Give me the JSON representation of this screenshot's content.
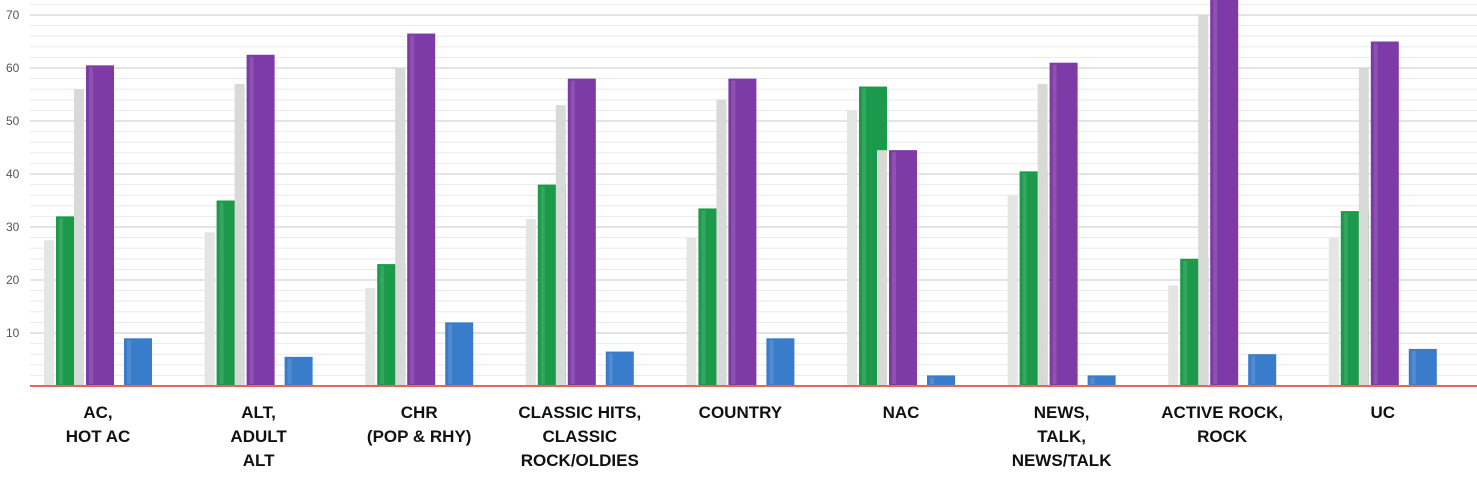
{
  "chart_data": {
    "type": "bar",
    "categories": [
      [
        "AC,",
        "HOT AC"
      ],
      [
        "ALT,",
        "ADULT",
        "ALT"
      ],
      [
        "CHR",
        "(POP & RHY)"
      ],
      [
        "CLASSIC HITS,",
        "CLASSIC",
        "ROCK/OLDIES"
      ],
      [
        "COUNTRY"
      ],
      [
        "NAC"
      ],
      [
        "NEWS,",
        "TALK,",
        "NEWS/TALK"
      ],
      [
        "ACTIVE ROCK,",
        "ROCK"
      ],
      [
        "UC"
      ]
    ],
    "series": [
      {
        "color": "#e3e6e3",
        "values": [
          27.5,
          29,
          18.5,
          31.5,
          28,
          52,
          36,
          19,
          28
        ]
      },
      {
        "color": "#1a9a4a",
        "values": [
          32,
          35,
          23,
          38,
          33.5,
          56.5,
          40.5,
          24,
          33
        ]
      },
      {
        "color": "#d8dad8",
        "values": [
          56,
          57,
          60,
          53,
          54,
          44.5,
          57,
          70,
          60
        ]
      },
      {
        "color": "#7e3aa6",
        "values": [
          60.5,
          62.5,
          66.5,
          58,
          58,
          44.5,
          61,
          75,
          65
        ]
      },
      {
        "color": "#3a7ccc",
        "values": [
          9,
          5.5,
          12,
          6.5,
          9,
          2,
          2,
          6,
          7
        ]
      }
    ],
    "yticks": [
      10,
      20,
      30,
      40,
      50,
      60,
      70
    ],
    "ylim": [
      0,
      74
    ],
    "grid": true,
    "baseline_color": "#e06a5a"
  }
}
